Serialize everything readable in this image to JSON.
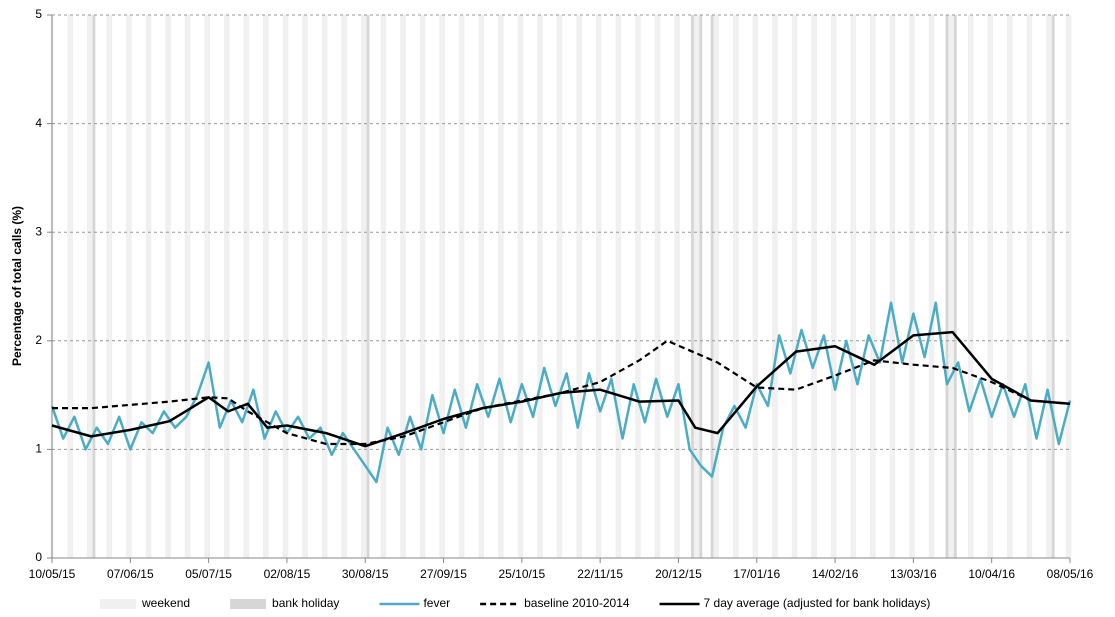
{
  "chart_data": {
    "type": "line",
    "y_label": "Percentage of total calls (%)",
    "xlim": [
      0,
      364
    ],
    "xticks": [
      {
        "value": 0,
        "label": "10/05/15"
      },
      {
        "value": 28,
        "label": "07/06/15"
      },
      {
        "value": 56,
        "label": "05/07/15"
      },
      {
        "value": 84,
        "label": "02/08/15"
      },
      {
        "value": 112,
        "label": "30/08/15"
      },
      {
        "value": 140,
        "label": "27/09/15"
      },
      {
        "value": 168,
        "label": "25/10/15"
      },
      {
        "value": 196,
        "label": "22/11/15"
      },
      {
        "value": 224,
        "label": "20/12/15"
      },
      {
        "value": 252,
        "label": "17/01/16"
      },
      {
        "value": 280,
        "label": "14/02/16"
      },
      {
        "value": 308,
        "label": "13/03/16"
      },
      {
        "value": 336,
        "label": "10/04/16"
      },
      {
        "value": 364,
        "label": "08/05/16"
      }
    ],
    "ylim": [
      0,
      5
    ],
    "yticks": [
      0,
      1,
      2,
      3,
      4,
      5
    ],
    "grid": true,
    "shading": [
      {
        "name": "weekend",
        "color": "#f0f0f0"
      },
      {
        "name": "bank holiday",
        "color": "#d6d6d6",
        "days": [
          15,
          113,
          229,
          232,
          236,
          320,
          323,
          358
        ]
      }
    ],
    "series": [
      {
        "name": "fever",
        "color": "#4bacc6",
        "dashed": false,
        "x": [
          0,
          4,
          8,
          12,
          16,
          20,
          24,
          28,
          32,
          36,
          40,
          44,
          48,
          52,
          56,
          60,
          64,
          68,
          72,
          76,
          80,
          84,
          88,
          92,
          96,
          100,
          104,
          108,
          112,
          116,
          120,
          124,
          128,
          132,
          136,
          140,
          144,
          148,
          152,
          156,
          160,
          164,
          168,
          172,
          176,
          180,
          184,
          188,
          192,
          196,
          200,
          204,
          208,
          212,
          216,
          220,
          224,
          228,
          232,
          236,
          240,
          244,
          248,
          252,
          256,
          260,
          264,
          268,
          272,
          276,
          280,
          284,
          288,
          292,
          296,
          300,
          304,
          308,
          312,
          316,
          320,
          324,
          328,
          332,
          336,
          340,
          344,
          348,
          352,
          356,
          360,
          364
        ],
        "values": [
          1.4,
          1.1,
          1.3,
          1.0,
          1.2,
          1.05,
          1.3,
          1.0,
          1.25,
          1.15,
          1.35,
          1.2,
          1.3,
          1.5,
          1.8,
          1.2,
          1.45,
          1.25,
          1.55,
          1.1,
          1.35,
          1.15,
          1.3,
          1.1,
          1.2,
          0.95,
          1.15,
          1.0,
          0.85,
          0.7,
          1.2,
          0.95,
          1.3,
          1.0,
          1.5,
          1.15,
          1.55,
          1.2,
          1.6,
          1.3,
          1.65,
          1.25,
          1.6,
          1.3,
          1.75,
          1.4,
          1.7,
          1.2,
          1.7,
          1.35,
          1.65,
          1.1,
          1.6,
          1.25,
          1.65,
          1.3,
          1.6,
          1.0,
          0.85,
          0.75,
          1.2,
          1.4,
          1.2,
          1.6,
          1.4,
          2.05,
          1.7,
          2.1,
          1.75,
          2.05,
          1.55,
          2.0,
          1.6,
          2.05,
          1.8,
          2.35,
          1.8,
          2.25,
          1.85,
          2.35,
          1.6,
          1.8,
          1.35,
          1.65,
          1.3,
          1.6,
          1.3,
          1.6,
          1.1,
          1.55,
          1.05,
          1.45
        ]
      },
      {
        "name": "baseline 2010-2014",
        "color": "#000000",
        "dashed": true,
        "x": [
          0,
          14,
          28,
          42,
          56,
          63,
          70,
          84,
          98,
          112,
          126,
          140,
          154,
          168,
          182,
          196,
          210,
          220,
          238,
          252,
          266,
          280,
          294,
          308,
          322,
          336,
          350,
          364
        ],
        "values": [
          1.38,
          1.38,
          1.41,
          1.44,
          1.48,
          1.47,
          1.35,
          1.15,
          1.05,
          1.05,
          1.12,
          1.25,
          1.38,
          1.45,
          1.52,
          1.62,
          1.82,
          2.0,
          1.8,
          1.57,
          1.55,
          1.68,
          1.82,
          1.78,
          1.75,
          1.62,
          1.45,
          1.42
        ]
      },
      {
        "name": "7 day average (adjusted for bank holidays)",
        "color": "#000000",
        "dashed": false,
        "x": [
          0,
          14,
          28,
          42,
          56,
          63,
          70,
          77,
          84,
          98,
          112,
          126,
          140,
          154,
          168,
          182,
          196,
          210,
          224,
          230,
          238,
          252,
          266,
          280,
          294,
          308,
          322,
          336,
          350,
          364
        ],
        "values": [
          1.22,
          1.12,
          1.18,
          1.26,
          1.48,
          1.35,
          1.42,
          1.2,
          1.22,
          1.15,
          1.03,
          1.15,
          1.28,
          1.38,
          1.44,
          1.52,
          1.55,
          1.44,
          1.45,
          1.2,
          1.15,
          1.58,
          1.9,
          1.95,
          1.78,
          2.05,
          2.08,
          1.65,
          1.45,
          1.42
        ]
      }
    ]
  }
}
